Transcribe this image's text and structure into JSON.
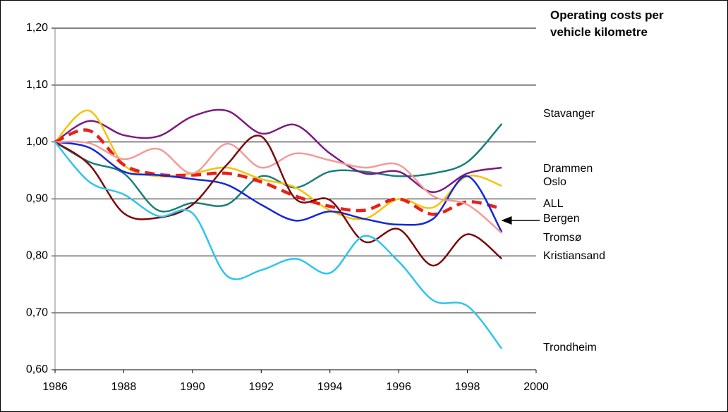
{
  "chart_data": {
    "type": "line",
    "title": "Operating costs per vehicle kilometre",
    "x": [
      1986,
      1987,
      1988,
      1989,
      1990,
      1991,
      1992,
      1993,
      1994,
      1995,
      1996,
      1997,
      1998,
      1999
    ],
    "xlim": [
      1986,
      2000
    ],
    "xticks": [
      1986,
      1988,
      1990,
      1992,
      1994,
      1996,
      1998,
      2000
    ],
    "ylim": [
      0.6,
      1.2
    ],
    "yticks": [
      {
        "value": 0.6,
        "label": "0,60"
      },
      {
        "value": 0.7,
        "label": "0,70"
      },
      {
        "value": 0.8,
        "label": "0,80"
      },
      {
        "value": 0.9,
        "label": "0,90"
      },
      {
        "value": 1.0,
        "label": "1,00"
      },
      {
        "value": 1.1,
        "label": "1,10"
      },
      {
        "value": 1.2,
        "label": "1,20"
      }
    ],
    "grid": true,
    "series": [
      {
        "name": "Stavanger",
        "color": "#1a7f7a",
        "values": [
          1.0,
          0.965,
          0.945,
          0.88,
          0.893,
          0.89,
          0.94,
          0.92,
          0.948,
          0.948,
          0.94,
          0.945,
          0.965,
          1.032
        ]
      },
      {
        "name": "Drammen",
        "color": "#7b1a80",
        "values": [
          1.0,
          1.037,
          1.012,
          1.01,
          1.045,
          1.055,
          1.015,
          1.03,
          0.98,
          0.945,
          0.948,
          0.912,
          0.945,
          0.955
        ]
      },
      {
        "name": "Oslo",
        "color": "#f5c400",
        "values": [
          1.0,
          1.055,
          0.96,
          0.94,
          0.945,
          0.955,
          0.935,
          0.92,
          0.88,
          0.865,
          0.9,
          0.885,
          0.94,
          0.923
        ]
      },
      {
        "name": "ALL",
        "color": "#e8201c",
        "dashed": true,
        "values": [
          1.0,
          1.02,
          0.96,
          0.943,
          0.942,
          0.945,
          0.93,
          0.905,
          0.887,
          0.88,
          0.9,
          0.873,
          0.895,
          0.883
        ]
      },
      {
        "name": "Bergen",
        "color": "#1428d8",
        "values": [
          1.0,
          0.99,
          0.948,
          0.942,
          0.935,
          0.925,
          0.89,
          0.862,
          0.878,
          0.865,
          0.855,
          0.865,
          0.94,
          0.842
        ]
      },
      {
        "name": "Tromsø",
        "color": "#f59a98",
        "values": [
          1.0,
          0.998,
          0.97,
          0.988,
          0.945,
          0.997,
          0.955,
          0.98,
          0.968,
          0.955,
          0.96,
          0.905,
          0.89,
          0.84
        ]
      },
      {
        "name": "Kristiansand",
        "color": "#7a0a0a",
        "values": [
          1.0,
          0.96,
          0.875,
          0.867,
          0.89,
          0.96,
          1.01,
          0.9,
          0.898,
          0.825,
          0.847,
          0.783,
          0.838,
          0.795
        ]
      },
      {
        "name": "Trondheim",
        "color": "#2ec4f0",
        "values": [
          1.0,
          0.93,
          0.908,
          0.87,
          0.875,
          0.765,
          0.775,
          0.795,
          0.77,
          0.835,
          0.79,
          0.722,
          0.712,
          0.637
        ]
      }
    ]
  }
}
